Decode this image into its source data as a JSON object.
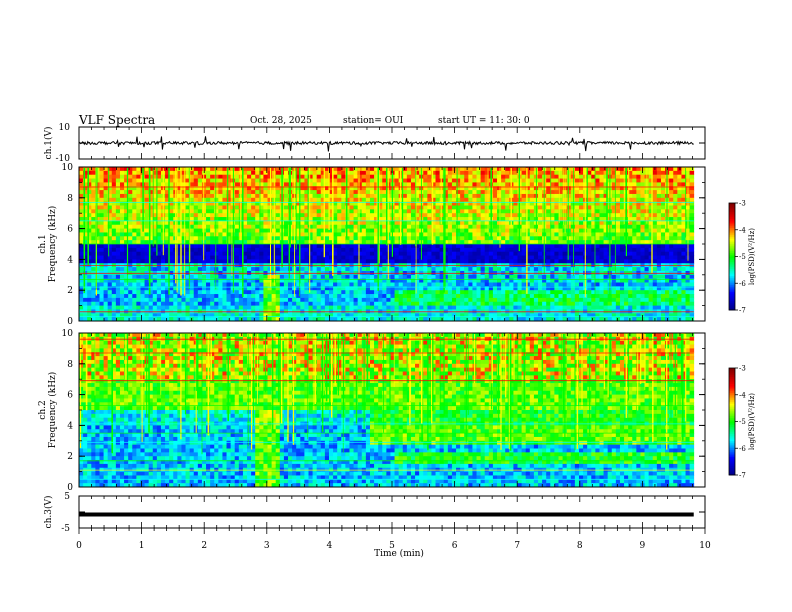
{
  "header": {
    "title": "VLF Spectra",
    "date": "Oct. 28, 2025",
    "station": "station= OUI",
    "start": "start  UT =   11: 30: 0"
  },
  "chart_data": [
    {
      "type": "line",
      "name": "ch1-waveform",
      "ylabel": "ch.1(V)",
      "ylim": [
        -10,
        10
      ],
      "yticks": [
        "10",
        "-10"
      ],
      "level": 0
    },
    {
      "type": "heatmap",
      "name": "ch1-spectrogram",
      "ylabel": "Frequency (kHz)",
      "channel_label": "ch.1",
      "ylim": [
        0,
        10
      ],
      "yticks": [
        "0",
        "2",
        "4",
        "6",
        "8",
        "10"
      ],
      "colorbar": {
        "label": "log(PSD)(V²/Hz)",
        "ticks": [
          "-3",
          "-4",
          "-5",
          "-6",
          "-7"
        ],
        "range": [
          -7,
          -3
        ]
      }
    },
    {
      "type": "heatmap",
      "name": "ch2-spectrogram",
      "ylabel": "Frequency (kHz)",
      "channel_label": "ch.2",
      "ylim": [
        0,
        10
      ],
      "yticks": [
        "0",
        "2",
        "4",
        "6",
        "8",
        "10"
      ],
      "colorbar": {
        "label": "log(PSD)(V²/Hz)",
        "ticks": [
          "-3",
          "-4",
          "-5",
          "-6",
          "-7"
        ],
        "range": [
          -7,
          -3
        ]
      }
    },
    {
      "type": "line",
      "name": "ch3-waveform",
      "ylabel": "ch.3(V)",
      "ylim": [
        -5,
        5
      ],
      "yticks": [
        "5",
        "-5"
      ],
      "level": -0.8
    }
  ],
  "x_axis": {
    "label": "Time (min)",
    "xlim": [
      0,
      10
    ],
    "ticks": [
      "0",
      "1",
      "2",
      "3",
      "4",
      "5",
      "6",
      "7",
      "8",
      "9",
      "10"
    ],
    "data_end": 9.82
  },
  "colors": {
    "dark_blue": "#000080",
    "blue": "#0000ff",
    "cyan": "#00ffff",
    "green": "#00ff00",
    "yellow": "#ffff00",
    "red": "#ff0000",
    "dark_red": "#800000"
  }
}
